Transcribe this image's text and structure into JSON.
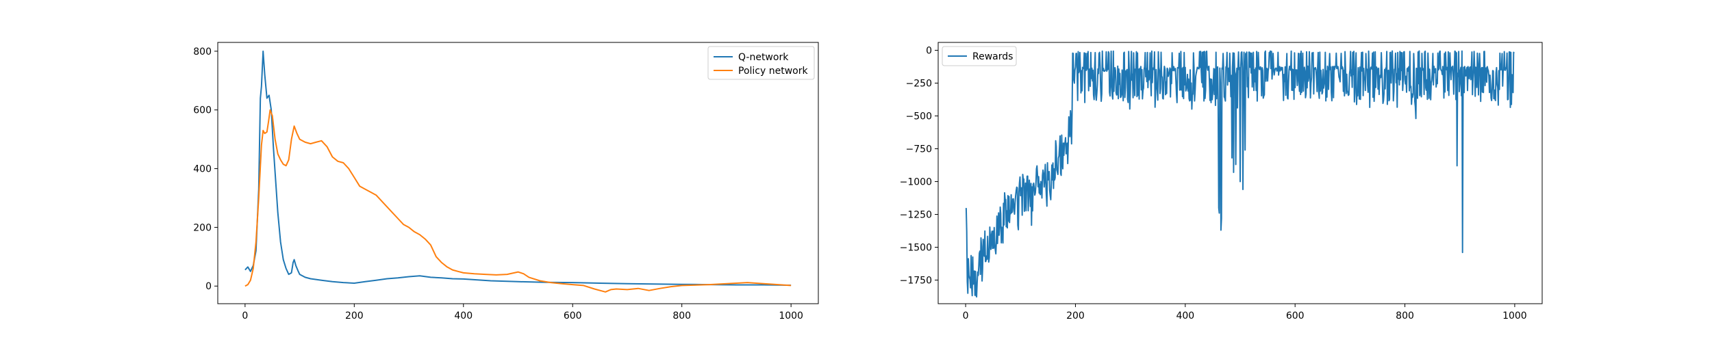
{
  "chart_data": [
    {
      "type": "line",
      "title": "",
      "xlabel": "",
      "ylabel": "",
      "xlim": [
        -50,
        1050
      ],
      "ylim": [
        -60,
        830
      ],
      "xticks": [
        0,
        200,
        400,
        600,
        800,
        1000
      ],
      "yticks": [
        0,
        200,
        400,
        600,
        800
      ],
      "legend_position": "top-right",
      "grid": false,
      "series": [
        {
          "name": "Q-network",
          "color": "#1f77b4",
          "points": [
            [
              0,
              55
            ],
            [
              5,
              65
            ],
            [
              10,
              50
            ],
            [
              15,
              70
            ],
            [
              20,
              120
            ],
            [
              25,
              330
            ],
            [
              28,
              640
            ],
            [
              30,
              680
            ],
            [
              33,
              800
            ],
            [
              36,
              720
            ],
            [
              40,
              640
            ],
            [
              44,
              650
            ],
            [
              48,
              600
            ],
            [
              52,
              470
            ],
            [
              56,
              360
            ],
            [
              60,
              250
            ],
            [
              65,
              150
            ],
            [
              70,
              90
            ],
            [
              75,
              60
            ],
            [
              80,
              40
            ],
            [
              85,
              45
            ],
            [
              88,
              80
            ],
            [
              90,
              90
            ],
            [
              93,
              70
            ],
            [
              97,
              52
            ],
            [
              100,
              40
            ],
            [
              110,
              30
            ],
            [
              120,
              25
            ],
            [
              140,
              20
            ],
            [
              160,
              15
            ],
            [
              180,
              12
            ],
            [
              200,
              10
            ],
            [
              220,
              15
            ],
            [
              240,
              20
            ],
            [
              260,
              25
            ],
            [
              280,
              28
            ],
            [
              300,
              32
            ],
            [
              320,
              35
            ],
            [
              340,
              30
            ],
            [
              360,
              28
            ],
            [
              380,
              25
            ],
            [
              400,
              24
            ],
            [
              450,
              18
            ],
            [
              500,
              15
            ],
            [
              550,
              13
            ],
            [
              600,
              12
            ],
            [
              650,
              10
            ],
            [
              700,
              8
            ],
            [
              750,
              7
            ],
            [
              800,
              6
            ],
            [
              850,
              5
            ],
            [
              900,
              4
            ],
            [
              950,
              4
            ],
            [
              1000,
              3
            ]
          ]
        },
        {
          "name": "Policy network",
          "color": "#ff7f0e",
          "points": [
            [
              0,
              0
            ],
            [
              5,
              5
            ],
            [
              10,
              20
            ],
            [
              15,
              60
            ],
            [
              20,
              150
            ],
            [
              25,
              300
            ],
            [
              30,
              480
            ],
            [
              33,
              530
            ],
            [
              36,
              520
            ],
            [
              40,
              525
            ],
            [
              43,
              560
            ],
            [
              46,
              600
            ],
            [
              50,
              580
            ],
            [
              55,
              500
            ],
            [
              60,
              450
            ],
            [
              65,
              430
            ],
            [
              70,
              415
            ],
            [
              75,
              410
            ],
            [
              80,
              430
            ],
            [
              85,
              500
            ],
            [
              90,
              545
            ],
            [
              95,
              520
            ],
            [
              100,
              500
            ],
            [
              110,
              490
            ],
            [
              120,
              485
            ],
            [
              130,
              490
            ],
            [
              140,
              495
            ],
            [
              150,
              475
            ],
            [
              160,
              440
            ],
            [
              170,
              425
            ],
            [
              180,
              420
            ],
            [
              190,
              400
            ],
            [
              200,
              370
            ],
            [
              210,
              340
            ],
            [
              220,
              330
            ],
            [
              230,
              320
            ],
            [
              240,
              310
            ],
            [
              250,
              290
            ],
            [
              260,
              270
            ],
            [
              270,
              250
            ],
            [
              280,
              230
            ],
            [
              290,
              210
            ],
            [
              300,
              200
            ],
            [
              310,
              185
            ],
            [
              320,
              175
            ],
            [
              330,
              160
            ],
            [
              340,
              140
            ],
            [
              350,
              100
            ],
            [
              360,
              80
            ],
            [
              370,
              65
            ],
            [
              380,
              55
            ],
            [
              390,
              50
            ],
            [
              400,
              45
            ],
            [
              420,
              42
            ],
            [
              440,
              40
            ],
            [
              460,
              38
            ],
            [
              480,
              40
            ],
            [
              500,
              48
            ],
            [
              510,
              42
            ],
            [
              520,
              30
            ],
            [
              540,
              18
            ],
            [
              560,
              12
            ],
            [
              580,
              8
            ],
            [
              600,
              5
            ],
            [
              620,
              2
            ],
            [
              640,
              -10
            ],
            [
              660,
              -20
            ],
            [
              670,
              -12
            ],
            [
              680,
              -10
            ],
            [
              700,
              -12
            ],
            [
              720,
              -8
            ],
            [
              740,
              -15
            ],
            [
              760,
              -8
            ],
            [
              780,
              -2
            ],
            [
              800,
              2
            ],
            [
              850,
              5
            ],
            [
              900,
              10
            ],
            [
              920,
              12
            ],
            [
              950,
              8
            ],
            [
              1000,
              2
            ]
          ]
        }
      ]
    },
    {
      "type": "line",
      "title": "",
      "xlabel": "",
      "ylabel": "",
      "xlim": [
        -50,
        1050
      ],
      "ylim": [
        -1930,
        60
      ],
      "xticks": [
        0,
        200,
        400,
        600,
        800,
        1000
      ],
      "yticks": [
        0,
        -250,
        -500,
        -750,
        -1000,
        -1250,
        -1500,
        -1750
      ],
      "legend_position": "top-left",
      "grid": false,
      "series": [
        {
          "name": "Rewards",
          "color": "#1f77b4",
          "generator": "noisy_rewards"
        }
      ]
    }
  ],
  "axes": {
    "left": {
      "xtick_labels": [
        "0",
        "200",
        "400",
        "600",
        "800",
        "1000"
      ],
      "ytick_labels": [
        "0",
        "200",
        "400",
        "600",
        "800"
      ]
    },
    "right": {
      "xtick_labels": [
        "0",
        "200",
        "400",
        "600",
        "800",
        "1000"
      ],
      "ytick_labels": [
        "0",
        "−250",
        "−500",
        "−750",
        "−1000",
        "−1250",
        "−1500",
        "−1750"
      ]
    }
  }
}
